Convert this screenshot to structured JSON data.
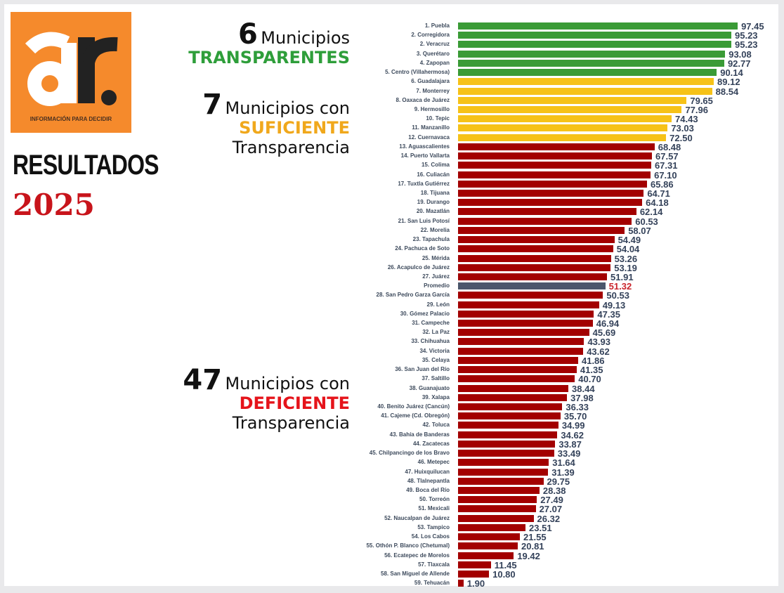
{
  "logo": {
    "text": "ar.",
    "tagline": "INFORMACIÓN PARA DECIDIR"
  },
  "heading": {
    "title": "RESULTADOS",
    "year": "2025"
  },
  "groups": [
    {
      "count": "6",
      "line1": "Municipios",
      "category": "TRANSPARENTES",
      "line3": "",
      "color": "#2e9e3a"
    },
    {
      "count": "7",
      "line1": "Municipios con",
      "category": "SUFICIENTE",
      "line3": "Transparencia",
      "color": "#f0a81c"
    },
    {
      "count": "47",
      "line1": "Municipios con",
      "category": "DEFICIENTE",
      "line3": "Transparencia",
      "color": "#e5141b"
    }
  ],
  "colors": {
    "transparente": "#3a9b36",
    "suficiente": "#f6c218",
    "deficiente": "#a30000",
    "promedio": "#4b566b",
    "promedio_value": "#c9242b"
  },
  "chart_data": {
    "type": "bar",
    "orientation": "horizontal",
    "categories": [
      "1. Puebla",
      "2. Corregidora",
      "2. Veracruz",
      "3. Querétaro",
      "4. Zapopan",
      "5. Centro (Villahermosa)",
      "6. Guadalajara",
      "7. Monterrey",
      "8. Oaxaca de Juárez",
      "9. Hermosillo",
      "10. Tepic",
      "11. Manzanillo",
      "12. Cuernavaca",
      "13. Aguascalientes",
      "14. Puerto Vallarta",
      "15. Colima",
      "16. Culiacán",
      "17. Tuxtla Gutiérrez",
      "18. Tijuana",
      "19. Durango",
      "20. Mazatlán",
      "21. San Luis Potosí",
      "22. Morelia",
      "23. Tapachula",
      "24. Pachuca de Soto",
      "25. Mérida",
      "26. Acapulco de Juárez",
      "27. Juárez",
      "Promedio",
      "28. San Pedro Garza García",
      "29. León",
      "30. Gómez Palacio",
      "31. Campeche",
      "32. La Paz",
      "33. Chihuahua",
      "34. Victoria",
      "35. Celaya",
      "36. San Juan del Río",
      "37. Saltillo",
      "38. Guanajuato",
      "39. Xalapa",
      "40. Benito Juárez (Cancún)",
      "41. Cajeme (Cd. Obregón)",
      "42. Toluca",
      "43. Bahía de Banderas",
      "44. Zacatecas",
      "45. Chilpancingo de los Bravo",
      "46. Metepec",
      "47. Huixquilucan",
      "48. Tlalnepantla",
      "49. Boca del Río",
      "50. Torreón",
      "51. Mexicali",
      "52. Naucalpan de Juárez",
      "53. Tampico",
      "54. Los Cabos",
      "55. Othón P. Blanco (Chetumal)",
      "56. Ecatepec de Morelos",
      "57. Tlaxcala",
      "58. San Miguel de Allende",
      "59. Tehuacán"
    ],
    "values": [
      97.45,
      95.23,
      95.23,
      93.08,
      92.77,
      90.14,
      89.12,
      88.54,
      79.65,
      77.96,
      74.43,
      73.03,
      72.5,
      68.48,
      67.57,
      67.31,
      67.1,
      65.86,
      64.71,
      64.18,
      62.14,
      60.53,
      58.07,
      54.49,
      54.04,
      53.26,
      53.19,
      51.91,
      51.32,
      50.53,
      49.13,
      47.35,
      46.94,
      45.69,
      43.93,
      43.62,
      41.86,
      41.35,
      40.7,
      38.44,
      37.98,
      36.33,
      35.7,
      34.99,
      34.62,
      33.87,
      33.49,
      31.64,
      31.39,
      29.75,
      28.38,
      27.49,
      27.07,
      26.32,
      23.51,
      21.55,
      20.81,
      19.42,
      11.45,
      10.8,
      1.9
    ],
    "value_labels": [
      "97.45",
      "95.23",
      "95.23",
      "93.08",
      "92.77",
      "90.14",
      "89.12",
      "88.54",
      "79.65",
      "77.96",
      "74.43",
      "73.03",
      "72.50",
      "68.48",
      "67.57",
      "67.31",
      "67.10",
      "65.86",
      "64.71",
      "64.18",
      "62.14",
      "60.53",
      "58.07",
      "54.49",
      "54.04",
      "53.26",
      "53.19",
      "51.91",
      "51.32",
      "50.53",
      "49.13",
      "47.35",
      "46.94",
      "45.69",
      "43.93",
      "43.62",
      "41.86",
      "41.35",
      "40.70",
      "38.44",
      "37.98",
      "36.33",
      "35.70",
      "34.99",
      "34.62",
      "33.87",
      "33.49",
      "31.64",
      "31.39",
      "29.75",
      "28.38",
      "27.49",
      "27.07",
      "26.32",
      "23.51",
      "21.55",
      "20.81",
      "19.42",
      "11.45",
      "10.80",
      "1.90"
    ],
    "groups": [
      "transparente",
      "transparente",
      "transparente",
      "transparente",
      "transparente",
      "transparente",
      "suficiente",
      "suficiente",
      "suficiente",
      "suficiente",
      "suficiente",
      "suficiente",
      "suficiente",
      "deficiente",
      "deficiente",
      "deficiente",
      "deficiente",
      "deficiente",
      "deficiente",
      "deficiente",
      "deficiente",
      "deficiente",
      "deficiente",
      "deficiente",
      "deficiente",
      "deficiente",
      "deficiente",
      "deficiente",
      "promedio",
      "deficiente",
      "deficiente",
      "deficiente",
      "deficiente",
      "deficiente",
      "deficiente",
      "deficiente",
      "deficiente",
      "deficiente",
      "deficiente",
      "deficiente",
      "deficiente",
      "deficiente",
      "deficiente",
      "deficiente",
      "deficiente",
      "deficiente",
      "deficiente",
      "deficiente",
      "deficiente",
      "deficiente",
      "deficiente",
      "deficiente",
      "deficiente",
      "deficiente",
      "deficiente",
      "deficiente",
      "deficiente",
      "deficiente",
      "deficiente",
      "deficiente",
      "deficiente"
    ],
    "xlim": [
      0,
      100
    ],
    "grid": false,
    "axes_visible": false
  }
}
